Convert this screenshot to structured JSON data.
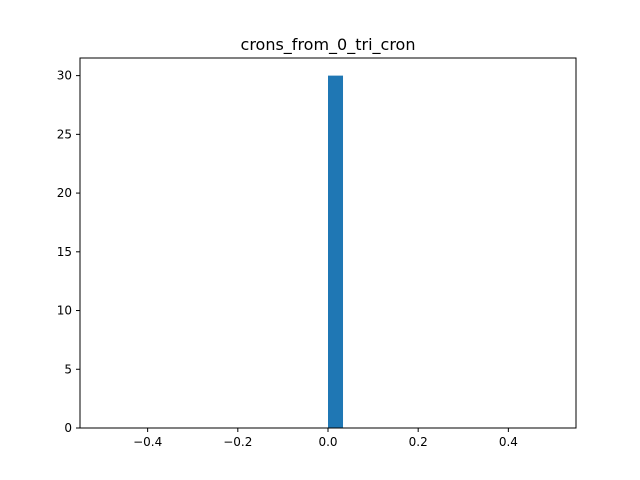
{
  "chart_data": {
    "type": "bar",
    "title": "crons_from_0_tri_cron",
    "xlabel": "",
    "ylabel": "",
    "xlim": [
      -0.55,
      0.55
    ],
    "ylim": [
      0,
      31.5
    ],
    "x_ticks": [
      -0.4,
      -0.2,
      0.0,
      0.2,
      0.4
    ],
    "x_tick_labels": [
      "−0.4",
      "−0.2",
      "0.0",
      "0.2",
      "0.4"
    ],
    "y_ticks": [
      0,
      5,
      10,
      15,
      20,
      25,
      30
    ],
    "y_tick_labels": [
      "0",
      "5",
      "10",
      "15",
      "20",
      "25",
      "30"
    ],
    "bars": [
      {
        "x_start": 0.0,
        "x_end": 0.0333,
        "value": 30
      }
    ],
    "grid": false,
    "bar_color": "#1f77b4"
  }
}
